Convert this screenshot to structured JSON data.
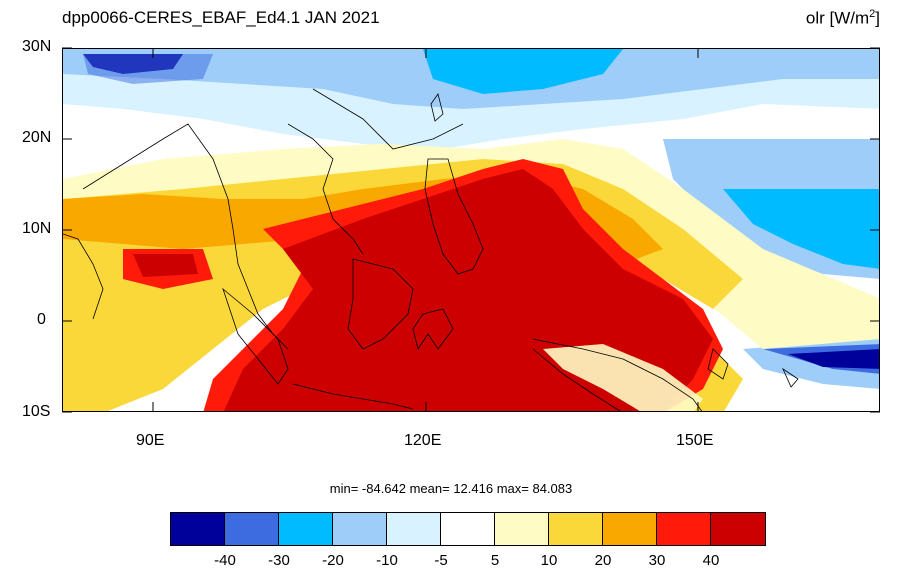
{
  "title": {
    "left": "dpp0066-CERES_EBAF_Ed4.1  JAN 2021",
    "right_var": "olr [W/m",
    "right_sup": "2",
    "right_close": "]"
  },
  "axes": {
    "lat_labels": [
      "30N",
      "20N",
      "10N",
      "0",
      "10S"
    ],
    "lon_labels": [
      "90E",
      "120E",
      "150E"
    ]
  },
  "stats": {
    "text": "min= -84.642  mean=  12.416  max=  84.083",
    "min": -84.642,
    "mean": 12.416,
    "max": 84.083
  },
  "colorbar": {
    "colors": [
      "#00009a",
      "#3d6be0",
      "#00bbff",
      "#9ecdfa",
      "#d8f3ff",
      "#ffffff",
      "#fffbc4",
      "#fbd83a",
      "#f9a800",
      "#ff1a0a",
      "#cc0000"
    ],
    "labels": [
      "-40",
      "-30",
      "-20",
      "-10",
      "-5",
      "5",
      "10",
      "20",
      "30",
      "40"
    ]
  },
  "map": {
    "projection": "cylindrical equidistant",
    "lon_range": [
      80,
      170
    ],
    "lat_range": [
      -10,
      30
    ],
    "palette": {
      "deep_red": "#cc0000",
      "red": "#ff1a0a",
      "orange": "#f9a800",
      "yellow": "#fbd83a",
      "light_yellow": "#fffbc4",
      "white": "#ffffff",
      "pale_blue": "#d8f3ff",
      "light_blue": "#9ecdfa",
      "blue": "#00bbff",
      "royal_blue": "#3d6be0",
      "navy": "#00009a"
    }
  }
}
